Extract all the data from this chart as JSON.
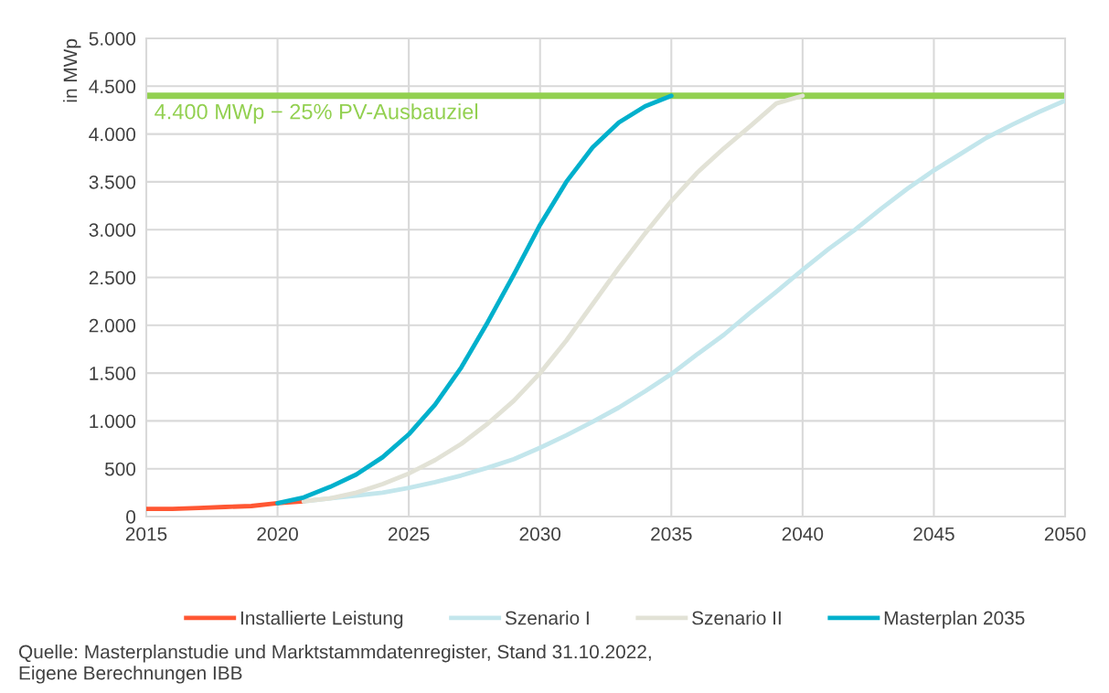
{
  "chart_data": {
    "type": "line",
    "ylabel": "in MWp",
    "series": [
      {
        "name": "Installierte Leistung",
        "color": "#ff5733",
        "x": [
          2015,
          2016,
          2017,
          2018,
          2019,
          2020,
          2021
        ],
        "values": [
          80,
          80,
          90,
          100,
          110,
          140,
          160
        ]
      },
      {
        "name": "Szenario I",
        "color": "#c3e6ec",
        "x": [
          2021,
          2022,
          2023,
          2024,
          2025,
          2026,
          2027,
          2028,
          2029,
          2030,
          2031,
          2032,
          2033,
          2034,
          2035,
          2036,
          2037,
          2038,
          2039,
          2040,
          2041,
          2042,
          2043,
          2044,
          2045,
          2046,
          2047,
          2048,
          2049,
          2050
        ],
        "values": [
          160,
          190,
          220,
          250,
          300,
          360,
          430,
          510,
          600,
          720,
          850,
          990,
          1140,
          1310,
          1490,
          1700,
          1900,
          2130,
          2350,
          2580,
          2800,
          3000,
          3220,
          3430,
          3620,
          3790,
          3960,
          4100,
          4230,
          4350
        ]
      },
      {
        "name": "Szenario II",
        "color": "#e2e2d6",
        "x": [
          2021,
          2022,
          2023,
          2024,
          2025,
          2026,
          2027,
          2028,
          2029,
          2030,
          2031,
          2032,
          2033,
          2034,
          2035,
          2036,
          2037,
          2038,
          2039,
          2040
        ],
        "values": [
          160,
          190,
          250,
          340,
          450,
          590,
          760,
          970,
          1210,
          1500,
          1840,
          2220,
          2600,
          2960,
          3300,
          3600,
          3850,
          4080,
          4320,
          4400
        ]
      },
      {
        "name": "Masterplan 2035",
        "color": "#00b0cc",
        "x": [
          2020,
          2021,
          2022,
          2023,
          2024,
          2025,
          2026,
          2027,
          2028,
          2029,
          2030,
          2031,
          2032,
          2033,
          2034,
          2035
        ],
        "values": [
          140,
          200,
          310,
          440,
          620,
          860,
          1170,
          1560,
          2030,
          2530,
          3050,
          3500,
          3860,
          4120,
          4290,
          4400
        ]
      }
    ],
    "xlim": [
      2015,
      2050
    ],
    "xticks": [
      2015,
      2020,
      2025,
      2030,
      2035,
      2040,
      2045,
      2050
    ],
    "ylim": [
      0,
      5000
    ],
    "yticks": [
      0,
      500,
      {
        "value": 1000,
        "label": "1.000"
      },
      {
        "value": 1500,
        "label": "1.500"
      },
      {
        "value": 2000,
        "label": "2.000"
      },
      {
        "value": 2500,
        "label": "2.500"
      },
      {
        "value": 3000,
        "label": "3.000"
      },
      {
        "value": 3500,
        "label": "3.500"
      },
      {
        "value": 4000,
        "label": "4.000"
      },
      {
        "value": 4500,
        "label": "4.500"
      },
      {
        "value": 5000,
        "label": "5.000"
      }
    ],
    "ref_lines": [
      {
        "axis": "y",
        "value": 4400,
        "label": "4.400 MWp − 25% PV-Ausbauziel",
        "color": "#92d050"
      }
    ],
    "annotations": [
      "Quelle: Masterplanstudie und Marktstammdatenregister, Stand 31.10.2022,\nEigene Berechnungen IBB"
    ],
    "grid": true,
    "legend": "bottom",
    "marker": "none",
    "line_style": "solid"
  }
}
